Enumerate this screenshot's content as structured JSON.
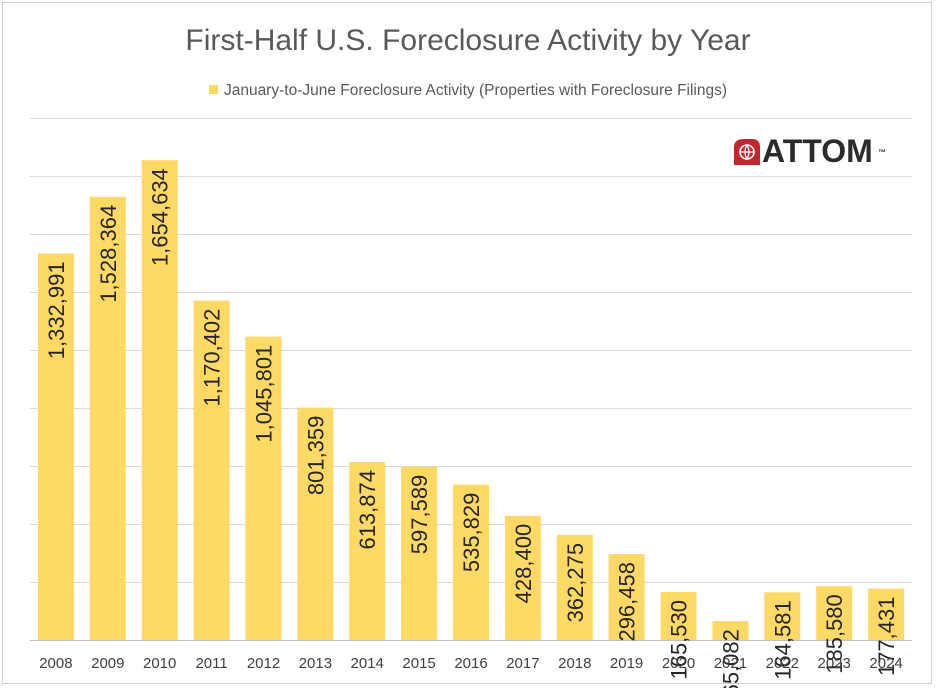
{
  "chart_data": {
    "type": "bar",
    "title": "First-Half U.S. Foreclosure Activity by Year",
    "legend": [
      "January-to-June Foreclosure Activity (Properties with Foreclosure Filings)"
    ],
    "legend_position": "top",
    "categories": [
      "2008",
      "2009",
      "2010",
      "2011",
      "2012",
      "2013",
      "2014",
      "2015",
      "2016",
      "2017",
      "2018",
      "2019",
      "2020",
      "2021",
      "2022",
      "2023",
      "2024"
    ],
    "values": [
      1332991,
      1528364,
      1654634,
      1170402,
      1045801,
      801359,
      613874,
      597589,
      535829,
      428400,
      362275,
      296458,
      165530,
      65082,
      164581,
      185580,
      177431
    ],
    "value_labels": [
      "1,332,991",
      "1,528,364",
      "1,654,634",
      "1,170,402",
      "1,045,801",
      "801,359",
      "613,874",
      "597,589",
      "535,829",
      "428,400",
      "362,275",
      "296,458",
      "165,530",
      "65,082",
      "164,581",
      "185,580",
      "177,431"
    ],
    "series": [
      {
        "name": "January-to-June Foreclosure Activity (Properties with Foreclosure Filings)",
        "values": [
          1332991,
          1528364,
          1654634,
          1170402,
          1045801,
          801359,
          613874,
          597589,
          535829,
          428400,
          362275,
          296458,
          165530,
          65082,
          164581,
          185580,
          177431
        ]
      }
    ],
    "ylim": [
      0,
      1800000
    ],
    "ytick_step": 200000,
    "grid": true,
    "bar_color": "#FFD966",
    "xlabel": "",
    "ylabel": ""
  },
  "logo": {
    "text": "ATTOM",
    "trademark": "™",
    "icon": "attom-globe-icon",
    "mark_color": "#C0272D"
  }
}
